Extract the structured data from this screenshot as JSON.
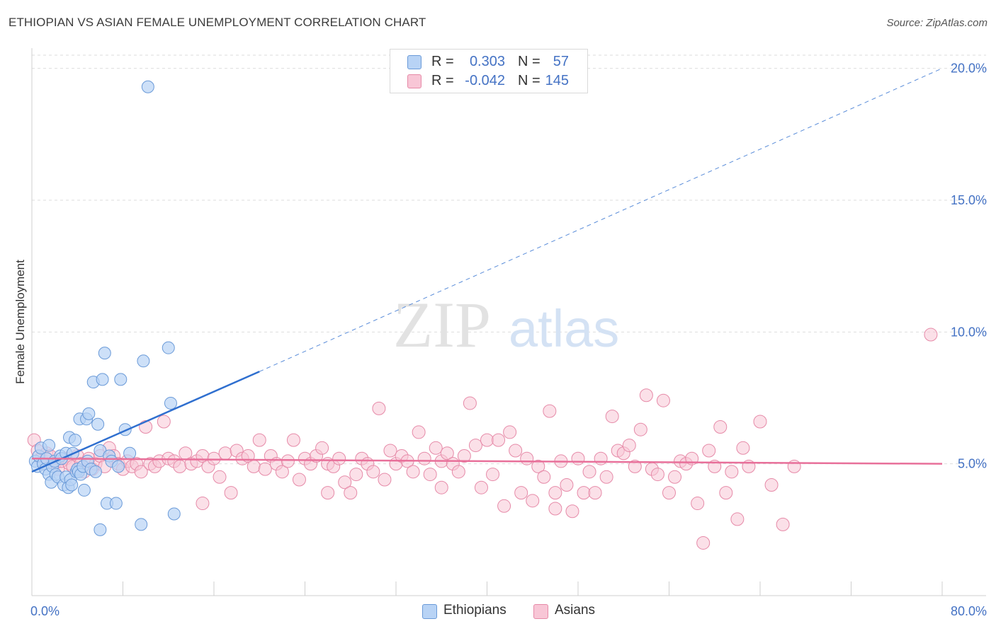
{
  "title": "ETHIOPIAN VS ASIAN FEMALE UNEMPLOYMENT CORRELATION CHART",
  "source": "Source: ZipAtlas.com",
  "watermark": {
    "zip": "ZIP",
    "atlas": "atlas"
  },
  "colors": {
    "ethiopians_fill": "#b8d3f5",
    "ethiopians_stroke": "#6a9ad8",
    "ethiopians_line": "#2f6fcf",
    "asians_fill": "#f8c6d6",
    "asians_stroke": "#e68aa8",
    "asians_line": "#e8709a",
    "axis_label": "#4472c4",
    "grid": "#dddddd"
  },
  "legend": {
    "rows": [
      {
        "r_label": "R =",
        "r_value": "0.303",
        "n_label": "N =",
        "n_value": "57"
      },
      {
        "r_label": "R =",
        "r_value": "-0.042",
        "n_label": "N =",
        "n_value": "145"
      }
    ],
    "series_names": [
      "Ethiopians",
      "Asians"
    ]
  },
  "chart_data": {
    "type": "scatter",
    "title": "ETHIOPIAN VS ASIAN FEMALE UNEMPLOYMENT CORRELATION CHART",
    "xlabel": "",
    "ylabel": "Female Unemployment",
    "xlim": [
      0,
      80
    ],
    "ylim": [
      0,
      20.5
    ],
    "x_tick_labels": [
      "0.0%",
      "80.0%"
    ],
    "y_ticks": [
      5,
      10,
      15,
      20
    ],
    "y_tick_labels": [
      "5.0%",
      "10.0%",
      "15.0%",
      "20.0%"
    ],
    "grid": true,
    "series": [
      {
        "name": "Ethiopians",
        "r": 0.303,
        "n": 57,
        "trend": {
          "x0": 0,
          "y0": 4.7,
          "x1": 20,
          "y1": 8.5,
          "extended_x1": 80,
          "extended_y1": 20.0
        },
        "points": [
          [
            0.3,
            5.1
          ],
          [
            0.5,
            4.9
          ],
          [
            0.6,
            5.3
          ],
          [
            0.8,
            5.6
          ],
          [
            1.0,
            5.0
          ],
          [
            1.2,
            4.8
          ],
          [
            1.3,
            5.2
          ],
          [
            1.5,
            4.6
          ],
          [
            1.5,
            5.7
          ],
          [
            1.7,
            4.3
          ],
          [
            1.8,
            4.9
          ],
          [
            2.0,
            5.1
          ],
          [
            2.1,
            4.6
          ],
          [
            2.3,
            4.5
          ],
          [
            2.5,
            5.3
          ],
          [
            2.6,
            5.2
          ],
          [
            2.8,
            4.2
          ],
          [
            3.0,
            4.5
          ],
          [
            3.0,
            5.4
          ],
          [
            3.2,
            4.1
          ],
          [
            3.3,
            6.0
          ],
          [
            3.4,
            4.4
          ],
          [
            3.5,
            4.2
          ],
          [
            3.6,
            5.4
          ],
          [
            3.8,
            5.9
          ],
          [
            3.9,
            4.7
          ],
          [
            4.0,
            4.8
          ],
          [
            4.1,
            4.7
          ],
          [
            4.2,
            6.7
          ],
          [
            4.3,
            4.6
          ],
          [
            4.5,
            4.9
          ],
          [
            4.6,
            4.0
          ],
          [
            4.8,
            6.7
          ],
          [
            4.9,
            5.1
          ],
          [
            5.0,
            6.9
          ],
          [
            5.2,
            4.8
          ],
          [
            5.4,
            8.1
          ],
          [
            5.6,
            4.7
          ],
          [
            5.8,
            6.5
          ],
          [
            6.0,
            5.5
          ],
          [
            6.2,
            8.2
          ],
          [
            6.4,
            9.2
          ],
          [
            6.6,
            3.5
          ],
          [
            6.8,
            5.3
          ],
          [
            7.0,
            5.1
          ],
          [
            7.4,
            3.5
          ],
          [
            7.6,
            4.9
          ],
          [
            7.8,
            8.2
          ],
          [
            8.2,
            6.3
          ],
          [
            8.6,
            5.4
          ],
          [
            9.6,
            2.7
          ],
          [
            9.8,
            8.9
          ],
          [
            12.0,
            9.4
          ],
          [
            12.2,
            7.3
          ],
          [
            12.5,
            3.1
          ],
          [
            6.0,
            2.5
          ],
          [
            10.2,
            19.3
          ]
        ]
      },
      {
        "name": "Asians",
        "r": -0.042,
        "n": 145,
        "trend": {
          "x0": 0,
          "y0": 5.2,
          "x1": 80,
          "y1": 5.0
        },
        "points": [
          [
            0.2,
            5.9
          ],
          [
            0.5,
            5.5
          ],
          [
            0.8,
            5.2
          ],
          [
            1.0,
            5.0
          ],
          [
            1.3,
            5.4
          ],
          [
            1.6,
            5.3
          ],
          [
            2.0,
            5.0
          ],
          [
            2.3,
            4.8
          ],
          [
            2.6,
            5.1
          ],
          [
            3.0,
            5.2
          ],
          [
            3.3,
            5.0
          ],
          [
            3.6,
            4.9
          ],
          [
            4.0,
            5.3
          ],
          [
            4.3,
            5.0
          ],
          [
            4.6,
            4.7
          ],
          [
            5.0,
            5.2
          ],
          [
            5.3,
            4.8
          ],
          [
            5.6,
            5.0
          ],
          [
            6.0,
            5.3
          ],
          [
            6.4,
            4.9
          ],
          [
            6.8,
            5.6
          ],
          [
            7.2,
            5.3
          ],
          [
            7.6,
            5.0
          ],
          [
            8.0,
            4.8
          ],
          [
            8.4,
            5.1
          ],
          [
            8.8,
            4.9
          ],
          [
            9.2,
            5.0
          ],
          [
            9.6,
            4.7
          ],
          [
            10.0,
            6.4
          ],
          [
            10.4,
            5.0
          ],
          [
            10.8,
            4.9
          ],
          [
            11.2,
            5.1
          ],
          [
            11.6,
            6.6
          ],
          [
            12.0,
            5.2
          ],
          [
            12.5,
            5.1
          ],
          [
            13.0,
            4.9
          ],
          [
            13.5,
            5.4
          ],
          [
            14.0,
            5.0
          ],
          [
            14.5,
            5.1
          ],
          [
            15.0,
            5.3
          ],
          [
            15.5,
            4.9
          ],
          [
            16.0,
            5.2
          ],
          [
            16.5,
            4.5
          ],
          [
            17.0,
            5.4
          ],
          [
            17.5,
            3.9
          ],
          [
            18.0,
            5.5
          ],
          [
            18.5,
            5.2
          ],
          [
            19.0,
            5.3
          ],
          [
            19.5,
            4.9
          ],
          [
            20.0,
            5.9
          ],
          [
            20.5,
            4.8
          ],
          [
            21.0,
            5.3
          ],
          [
            21.5,
            5.0
          ],
          [
            22.0,
            4.7
          ],
          [
            22.5,
            5.1
          ],
          [
            23.0,
            5.9
          ],
          [
            23.5,
            4.4
          ],
          [
            24.0,
            5.2
          ],
          [
            24.5,
            5.0
          ],
          [
            25.0,
            5.3
          ],
          [
            25.5,
            5.6
          ],
          [
            26.0,
            5.0
          ],
          [
            26.5,
            4.9
          ],
          [
            27.0,
            5.2
          ],
          [
            27.5,
            4.3
          ],
          [
            28.0,
            3.9
          ],
          [
            28.5,
            4.6
          ],
          [
            29.0,
            5.2
          ],
          [
            29.5,
            5.0
          ],
          [
            30.0,
            4.7
          ],
          [
            30.5,
            7.1
          ],
          [
            31.0,
            4.4
          ],
          [
            31.5,
            5.5
          ],
          [
            32.0,
            5.0
          ],
          [
            32.5,
            5.3
          ],
          [
            33.0,
            5.1
          ],
          [
            33.5,
            4.7
          ],
          [
            34.0,
            6.2
          ],
          [
            34.5,
            5.2
          ],
          [
            35.0,
            4.6
          ],
          [
            35.5,
            5.6
          ],
          [
            36.0,
            5.1
          ],
          [
            36.5,
            5.4
          ],
          [
            37.0,
            5.0
          ],
          [
            37.5,
            4.7
          ],
          [
            38.0,
            5.3
          ],
          [
            38.5,
            7.3
          ],
          [
            39.0,
            5.7
          ],
          [
            39.5,
            4.1
          ],
          [
            40.0,
            5.9
          ],
          [
            40.5,
            4.6
          ],
          [
            41.0,
            5.9
          ],
          [
            41.5,
            3.4
          ],
          [
            42.0,
            6.2
          ],
          [
            42.5,
            5.5
          ],
          [
            43.0,
            3.9
          ],
          [
            43.5,
            5.2
          ],
          [
            44.0,
            3.6
          ],
          [
            44.5,
            4.9
          ],
          [
            45.0,
            4.5
          ],
          [
            45.5,
            7.0
          ],
          [
            46.0,
            3.9
          ],
          [
            46.5,
            5.1
          ],
          [
            47.0,
            4.2
          ],
          [
            47.5,
            3.2
          ],
          [
            48.0,
            5.2
          ],
          [
            48.5,
            3.9
          ],
          [
            49.0,
            4.7
          ],
          [
            49.5,
            3.9
          ],
          [
            50.0,
            5.2
          ],
          [
            50.5,
            4.5
          ],
          [
            51.0,
            6.8
          ],
          [
            51.5,
            5.5
          ],
          [
            52.0,
            5.4
          ],
          [
            52.5,
            5.7
          ],
          [
            53.0,
            4.9
          ],
          [
            53.5,
            6.3
          ],
          [
            54.0,
            7.6
          ],
          [
            54.5,
            4.8
          ],
          [
            55.0,
            4.6
          ],
          [
            55.5,
            7.4
          ],
          [
            56.0,
            3.9
          ],
          [
            56.5,
            4.5
          ],
          [
            57.0,
            5.1
          ],
          [
            57.5,
            5.0
          ],
          [
            58.0,
            5.2
          ],
          [
            58.5,
            3.5
          ],
          [
            59.0,
            2.0
          ],
          [
            59.5,
            5.5
          ],
          [
            60.0,
            4.9
          ],
          [
            60.5,
            6.4
          ],
          [
            61.0,
            3.9
          ],
          [
            61.5,
            4.7
          ],
          [
            62.0,
            2.9
          ],
          [
            62.5,
            5.6
          ],
          [
            63.0,
            4.9
          ],
          [
            64.0,
            6.6
          ],
          [
            65.0,
            4.2
          ],
          [
            66.0,
            2.7
          ],
          [
            67.0,
            4.9
          ],
          [
            79.0,
            9.9
          ],
          [
            15.0,
            3.5
          ],
          [
            26.0,
            3.9
          ],
          [
            36.0,
            4.1
          ],
          [
            46.0,
            3.3
          ]
        ]
      }
    ]
  }
}
